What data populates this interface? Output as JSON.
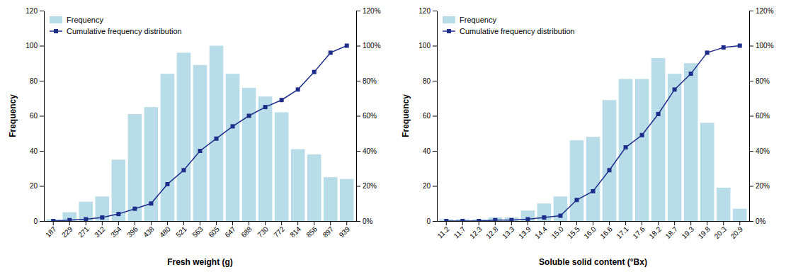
{
  "chart_data": [
    {
      "type": "bar",
      "xlabel": "Fresh weight (g)",
      "ylabel": "Frequency",
      "categories": [
        "187",
        "229",
        "271",
        "312",
        "354",
        "396",
        "438",
        "480",
        "521",
        "563",
        "605",
        "647",
        "688",
        "730",
        "772",
        "814",
        "856",
        "897",
        "939"
      ],
      "series": [
        {
          "name": "Frequency",
          "type": "bar",
          "color": "#b8dce8",
          "values": [
            1,
            5,
            11,
            14,
            35,
            61,
            65,
            84,
            96,
            89,
            100,
            84,
            76,
            71,
            62,
            41,
            38,
            25,
            24
          ]
        },
        {
          "name": "Cumulative frequency distribution",
          "type": "line",
          "color": "#1f2d8a",
          "marker": "square",
          "axis": "y2",
          "values": [
            0,
            0.5,
            1,
            2,
            4,
            7,
            10,
            21,
            29,
            40,
            47,
            54,
            60,
            65,
            69,
            75,
            85,
            96,
            100
          ]
        }
      ],
      "ylim": [
        0,
        120
      ],
      "yticks": [
        0,
        20,
        40,
        60,
        80,
        100,
        120
      ],
      "y2lim": [
        0,
        120
      ],
      "y2ticks": [
        {
          "value": 0,
          "label": "0%"
        },
        {
          "value": 20,
          "label": "20%"
        },
        {
          "value": 40,
          "label": "40%"
        },
        {
          "value": 60,
          "label": "60%"
        },
        {
          "value": 80,
          "label": "80%"
        },
        {
          "value": 100,
          "label": "100%"
        },
        {
          "value": 120,
          "label": "120%"
        }
      ],
      "grid": false,
      "legend": "upper left"
    },
    {
      "type": "bar",
      "xlabel": "Soluble solid content (°Bx)",
      "ylabel": "Frequency",
      "categories": [
        "11.2",
        "11.7",
        "12.3",
        "12.8",
        "13.3",
        "13.9",
        "14.4",
        "15.0",
        "15.5",
        "16.0",
        "16.6",
        "17.1",
        "17.6",
        "18.2",
        "18.7",
        "19.3",
        "19.8",
        "20.3",
        "20.9"
      ],
      "series": [
        {
          "name": "Frequency",
          "type": "bar",
          "color": "#b8dce8",
          "values": [
            1,
            1,
            1,
            2,
            2,
            6,
            10,
            14,
            46,
            48,
            69,
            81,
            81,
            93,
            84,
            90,
            56,
            19,
            7
          ]
        },
        {
          "name": "Cumulative frequency distribution",
          "type": "line",
          "color": "#1f2d8a",
          "marker": "square",
          "axis": "y2",
          "values": [
            0,
            0,
            0,
            0.5,
            0.5,
            1,
            2,
            3,
            12,
            17,
            29,
            42,
            49,
            61,
            75,
            84,
            96,
            99,
            100
          ]
        }
      ],
      "ylim": [
        0,
        120
      ],
      "yticks": [
        0,
        20,
        40,
        60,
        80,
        100,
        120
      ],
      "y2lim": [
        0,
        120
      ],
      "y2ticks": [
        {
          "value": 0,
          "label": "0%"
        },
        {
          "value": 20,
          "label": "20%"
        },
        {
          "value": 40,
          "label": "40%"
        },
        {
          "value": 60,
          "label": "60%"
        },
        {
          "value": 80,
          "label": "80%"
        },
        {
          "value": 100,
          "label": "100%"
        },
        {
          "value": 120,
          "label": "120%"
        }
      ],
      "grid": false,
      "legend": "upper left"
    }
  ]
}
